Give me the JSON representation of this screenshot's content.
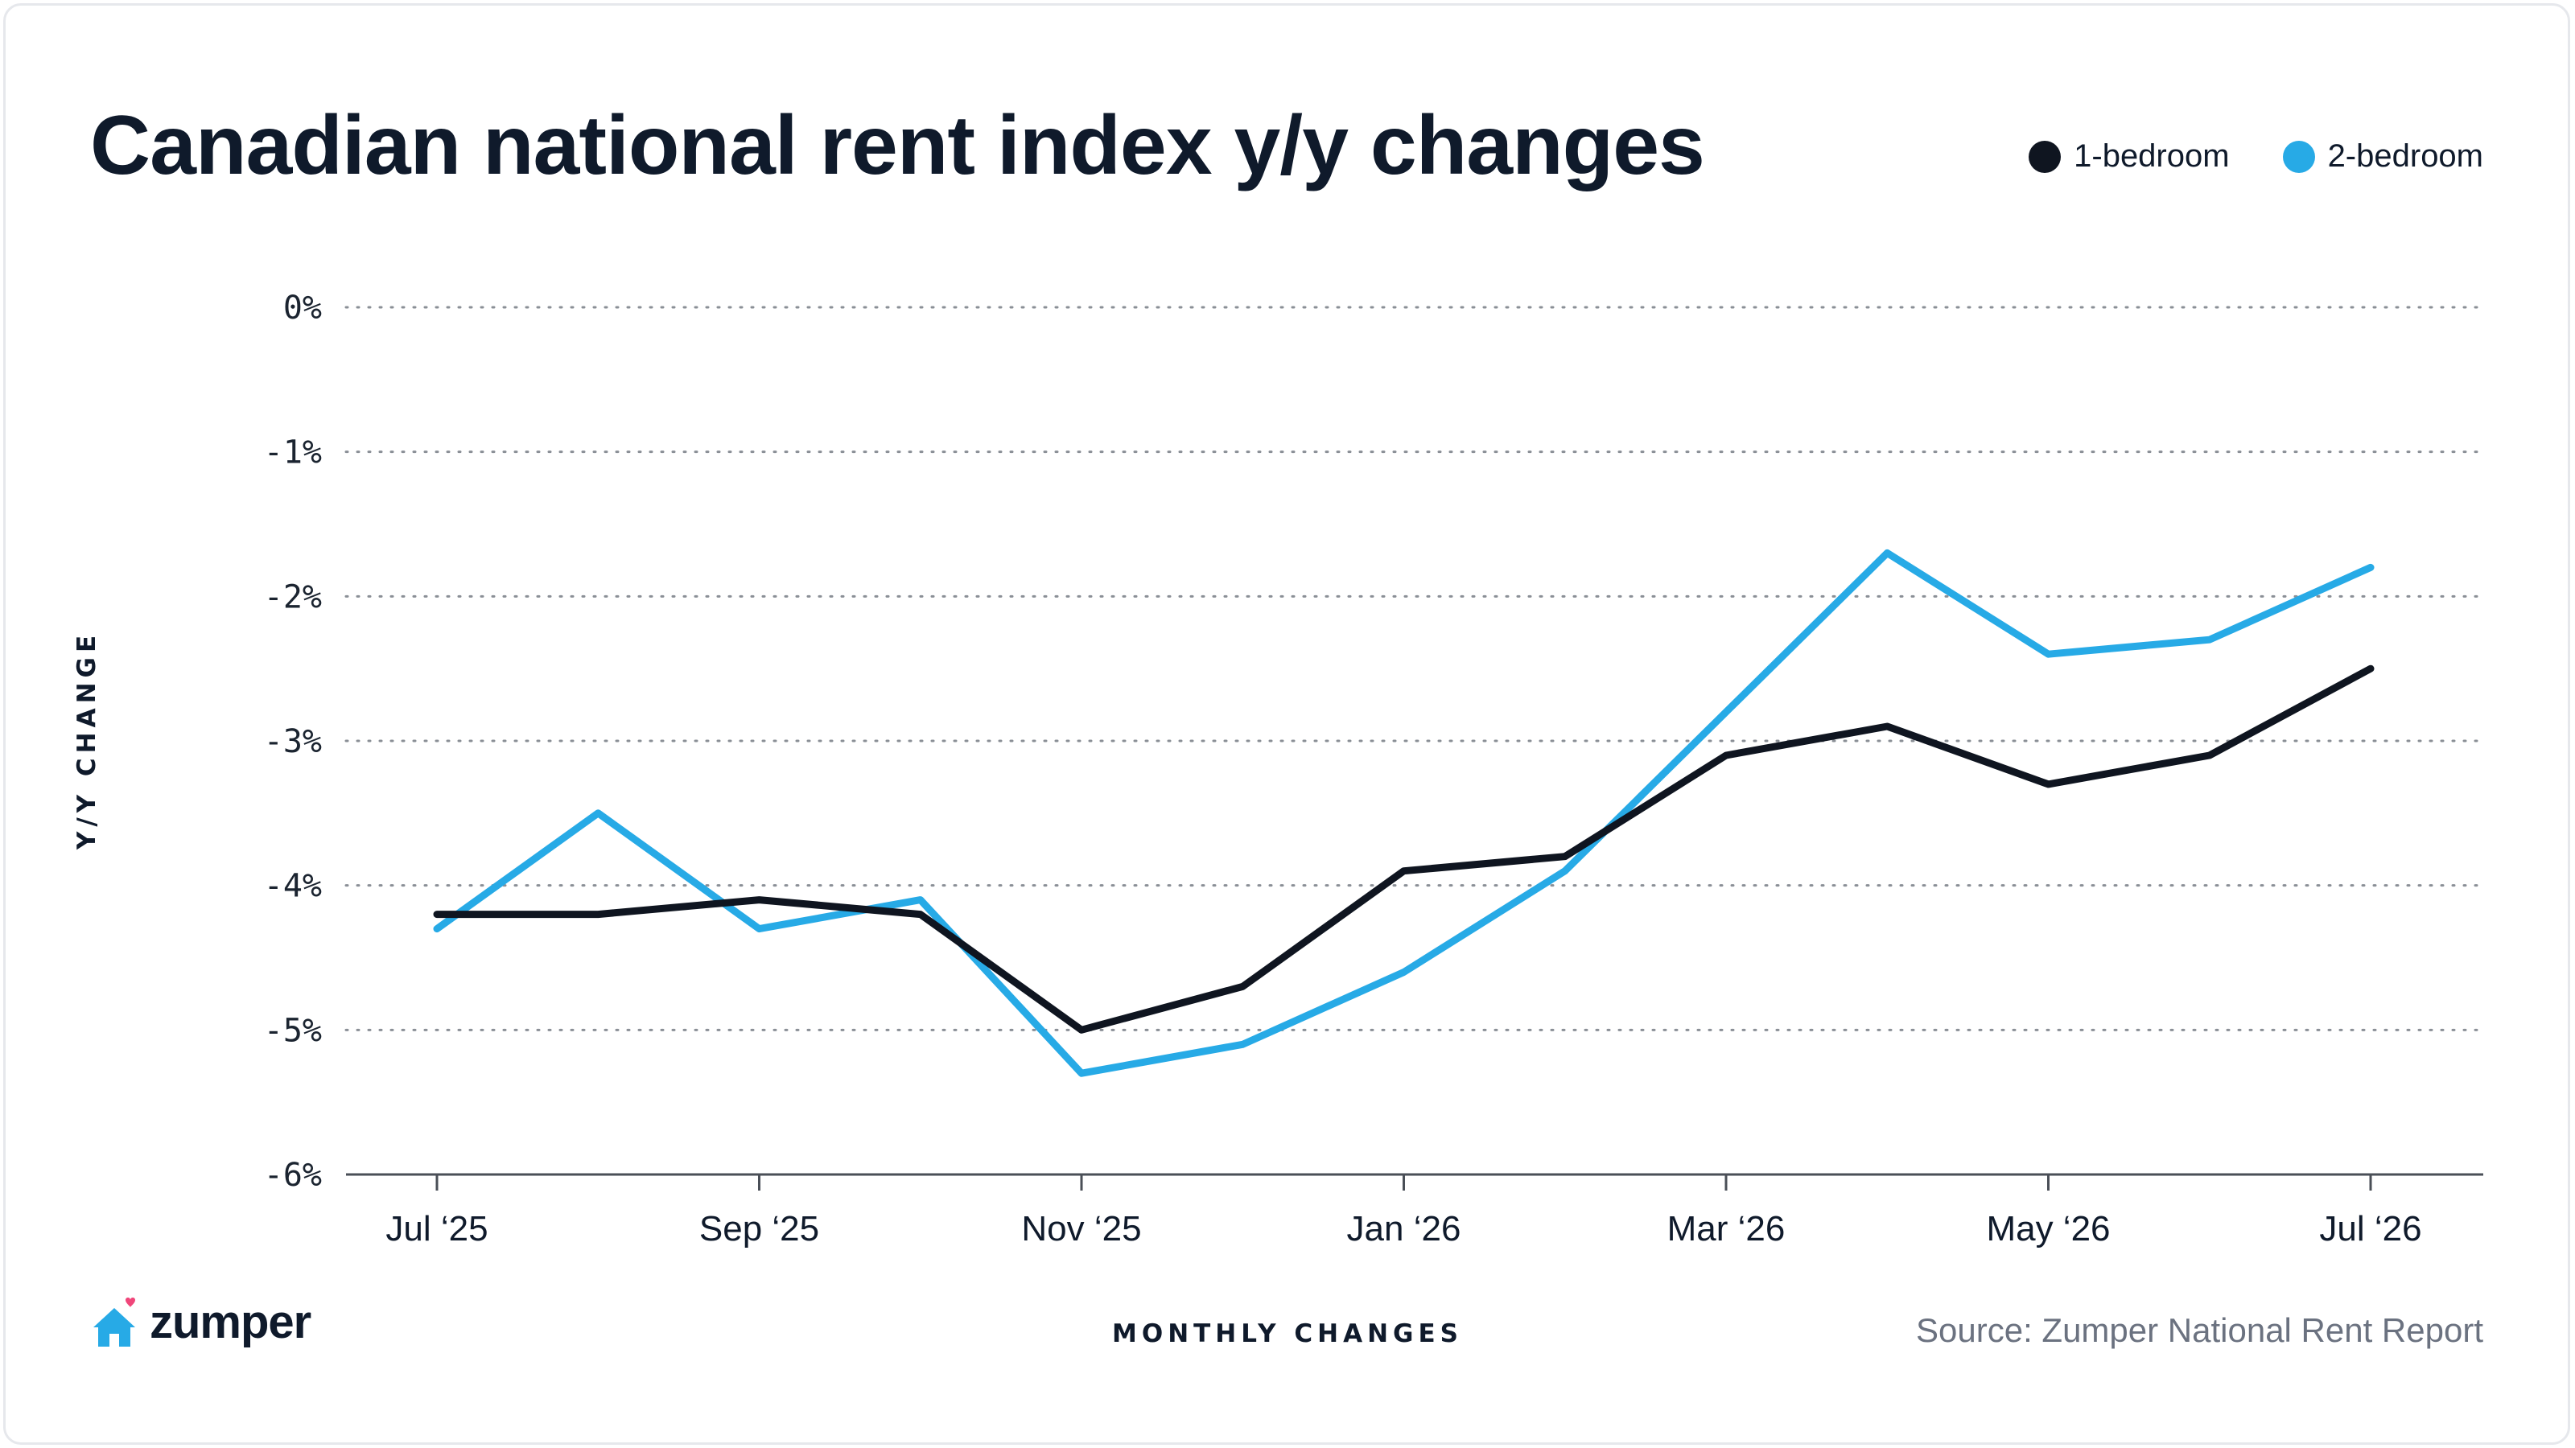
{
  "header": {
    "title": "Canadian national rent index y/y changes"
  },
  "legend": [
    {
      "label": "1-bedroom",
      "color": "#0f1520"
    },
    {
      "label": "2-bedroom",
      "color": "#27aae6"
    }
  ],
  "footer": {
    "brand": "zumper",
    "brand_icon": "house-heart-icon",
    "source": "Source: Zumper National Rent Report"
  },
  "chart_data": {
    "type": "line",
    "title": "Canadian national rent index y/y changes",
    "xlabel": "MONTHLY CHANGES",
    "ylabel": "Y/Y CHANGE",
    "x": [
      "Jul 2025",
      "Aug 2025",
      "Sep 2025",
      "Oct 2025",
      "Nov 2025",
      "Dec 2025",
      "Jan 2026",
      "Feb 2026",
      "Mar 2026",
      "Apr 2026",
      "May 2026",
      "Jun 2026",
      "Jul 2026"
    ],
    "x_tick_labels": [
      "Jul ‘25",
      "Sep ‘25",
      "Nov ‘25",
      "Jan ‘26",
      "Mar ‘26",
      "May ‘26",
      "Jul ‘26"
    ],
    "x_tick_every": 2,
    "y_ticks": [
      0,
      -1,
      -2,
      -3,
      -4,
      -5,
      -6
    ],
    "y_tick_labels": [
      "0%",
      "-1%",
      "-2%",
      "-3%",
      "-4%",
      "-5%",
      "-6%"
    ],
    "ylim": [
      -6,
      0
    ],
    "grid": "horizontal-dotted",
    "legend_position": "top-right",
    "series": [
      {
        "name": "1-bedroom",
        "color": "#0f1520",
        "values": [
          -4.2,
          -4.2,
          -4.1,
          -4.2,
          -5.0,
          -4.7,
          -3.9,
          -3.8,
          -3.1,
          -2.9,
          -3.3,
          -3.1,
          -2.5
        ]
      },
      {
        "name": "2-bedroom",
        "color": "#27aae6",
        "values": [
          -4.3,
          -3.5,
          -4.3,
          -4.1,
          -5.3,
          -5.1,
          -4.6,
          -3.9,
          -2.8,
          -1.7,
          -2.4,
          -2.3,
          -1.8
        ]
      }
    ]
  }
}
